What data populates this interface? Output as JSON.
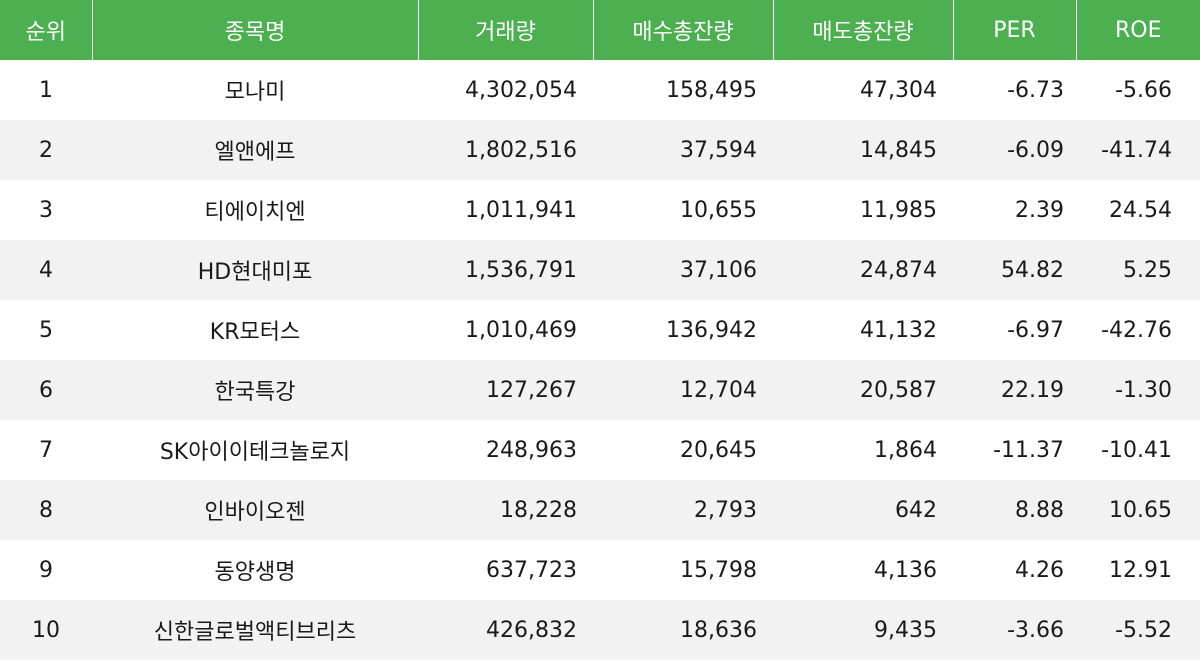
{
  "table": {
    "headers": {
      "rank": "순위",
      "name": "종목명",
      "volume": "거래량",
      "buy_total": "매수총잔량",
      "sell_total": "매도총잔량",
      "per": "PER",
      "roe": "ROE"
    },
    "header_color": "#4caf50",
    "stripe_color": "#f2f2f2",
    "rows": [
      {
        "rank": "1",
        "name": "모나미",
        "volume": "4,302,054",
        "buy_total": "158,495",
        "sell_total": "47,304",
        "per": "-6.73",
        "roe": "-5.66"
      },
      {
        "rank": "2",
        "name": "엘앤에프",
        "volume": "1,802,516",
        "buy_total": "37,594",
        "sell_total": "14,845",
        "per": "-6.09",
        "roe": "-41.74"
      },
      {
        "rank": "3",
        "name": "티에이치엔",
        "volume": "1,011,941",
        "buy_total": "10,655",
        "sell_total": "11,985",
        "per": "2.39",
        "roe": "24.54"
      },
      {
        "rank": "4",
        "name": "HD현대미포",
        "volume": "1,536,791",
        "buy_total": "37,106",
        "sell_total": "24,874",
        "per": "54.82",
        "roe": "5.25"
      },
      {
        "rank": "5",
        "name": "KR모터스",
        "volume": "1,010,469",
        "buy_total": "136,942",
        "sell_total": "41,132",
        "per": "-6.97",
        "roe": "-42.76"
      },
      {
        "rank": "6",
        "name": "한국특강",
        "volume": "127,267",
        "buy_total": "12,704",
        "sell_total": "20,587",
        "per": "22.19",
        "roe": "-1.30"
      },
      {
        "rank": "7",
        "name": "SK아이이테크놀로지",
        "volume": "248,963",
        "buy_total": "20,645",
        "sell_total": "1,864",
        "per": "-11.37",
        "roe": "-10.41"
      },
      {
        "rank": "8",
        "name": "인바이오젠",
        "volume": "18,228",
        "buy_total": "2,793",
        "sell_total": "642",
        "per": "8.88",
        "roe": "10.65"
      },
      {
        "rank": "9",
        "name": "동양생명",
        "volume": "637,723",
        "buy_total": "15,798",
        "sell_total": "4,136",
        "per": "4.26",
        "roe": "12.91"
      },
      {
        "rank": "10",
        "name": "신한글로벌액티브리츠",
        "volume": "426,832",
        "buy_total": "18,636",
        "sell_total": "9,435",
        "per": "-3.66",
        "roe": "-5.52"
      }
    ]
  }
}
